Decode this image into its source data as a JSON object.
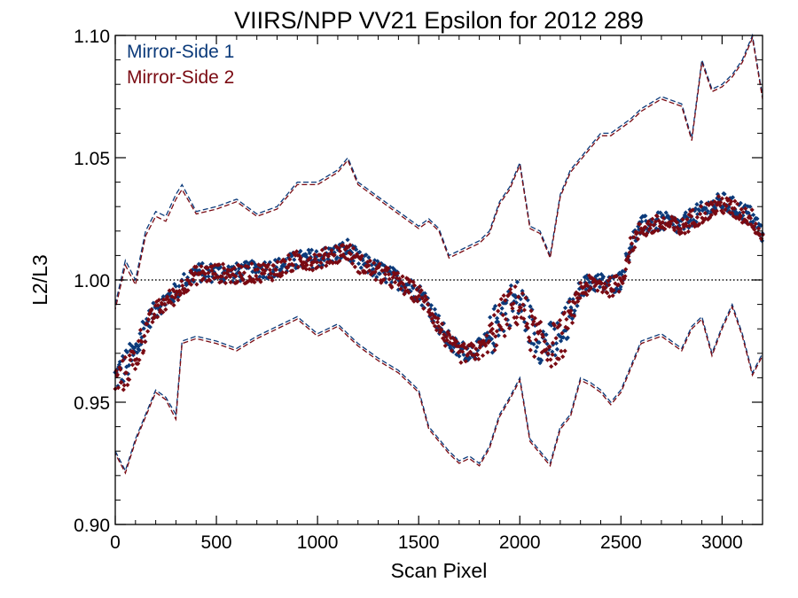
{
  "chart_data": {
    "type": "scatter",
    "title": "VIIRS/NPP VV21 Epsilon for 2012 289",
    "xlabel": "Scan Pixel",
    "ylabel": "L2/L3",
    "xlim": [
      0,
      3200
    ],
    "ylim": [
      0.9,
      1.1
    ],
    "x_ticks": [
      0,
      500,
      1000,
      1500,
      2000,
      2500,
      3000
    ],
    "x_tick_labels": [
      "0",
      "500",
      "1000",
      "1500",
      "2000",
      "2500",
      "3000"
    ],
    "y_ticks": [
      0.9,
      0.95,
      1.0,
      1.05,
      1.1
    ],
    "y_tick_labels": [
      "0.90",
      "0.95",
      "1.00",
      "1.05",
      "1.10"
    ],
    "reference_line": {
      "y": 1.0,
      "style": "dotted",
      "color": "#000000"
    },
    "legend": {
      "placement": "top-left"
    },
    "grid": false,
    "mean_x": [
      0,
      50,
      100,
      150,
      200,
      250,
      300,
      350,
      400,
      500,
      600,
      700,
      800,
      900,
      1000,
      1100,
      1150,
      1200,
      1300,
      1400,
      1500,
      1550,
      1600,
      1650,
      1700,
      1750,
      1800,
      1850,
      1900,
      1950,
      2000,
      2050,
      2100,
      2150,
      2200,
      2250,
      2300,
      2350,
      2400,
      2450,
      2500,
      2550,
      2600,
      2700,
      2800,
      2850,
      2900,
      2950,
      3000,
      3050,
      3100,
      3150,
      3200
    ],
    "upper_x": [
      0,
      50,
      100,
      150,
      200,
      250,
      300,
      330,
      400,
      500,
      600,
      700,
      800,
      900,
      1000,
      1100,
      1150,
      1200,
      1300,
      1400,
      1500,
      1550,
      1600,
      1650,
      1700,
      1750,
      1800,
      1850,
      1900,
      1950,
      2000,
      2050,
      2100,
      2150,
      2200,
      2250,
      2300,
      2350,
      2400,
      2450,
      2500,
      2550,
      2600,
      2700,
      2800,
      2850,
      2900,
      2950,
      3000,
      3050,
      3100,
      3150,
      3200
    ],
    "lower_x": [
      0,
      50,
      100,
      150,
      200,
      250,
      300,
      330,
      400,
      500,
      600,
      700,
      800,
      900,
      1000,
      1100,
      1150,
      1200,
      1300,
      1400,
      1500,
      1550,
      1600,
      1650,
      1700,
      1750,
      1800,
      1850,
      1900,
      1950,
      2000,
      2050,
      2100,
      2150,
      2200,
      2250,
      2300,
      2350,
      2400,
      2450,
      2500,
      2550,
      2600,
      2700,
      2800,
      2850,
      2900,
      2950,
      3000,
      3050,
      3100,
      3150,
      3200
    ],
    "series": [
      {
        "name": "Mirror-Side 1",
        "color": "#0b3a7a",
        "mean_y": [
          0.96,
          0.965,
          0.97,
          0.982,
          0.988,
          0.992,
          0.995,
          1.0,
          1.003,
          1.003,
          1.003,
          1.004,
          1.005,
          1.008,
          1.009,
          1.011,
          1.013,
          1.008,
          1.004,
          1.0,
          0.995,
          0.99,
          0.982,
          0.975,
          0.971,
          0.971,
          0.972,
          0.976,
          0.985,
          0.99,
          0.992,
          0.982,
          0.975,
          0.974,
          0.976,
          0.985,
          0.997,
          0.999,
          0.999,
          0.998,
          1.0,
          1.015,
          1.022,
          1.024,
          1.022,
          1.026,
          1.028,
          1.03,
          1.032,
          1.03,
          1.028,
          1.026,
          1.018
        ],
        "upper_y": [
          0.99,
          1.008,
          1.0,
          1.02,
          1.028,
          1.026,
          1.035,
          1.039,
          1.028,
          1.03,
          1.033,
          1.027,
          1.03,
          1.04,
          1.04,
          1.045,
          1.05,
          1.04,
          1.034,
          1.028,
          1.022,
          1.025,
          1.021,
          1.01,
          1.012,
          1.014,
          1.016,
          1.02,
          1.032,
          1.038,
          1.048,
          1.022,
          1.02,
          1.01,
          1.035,
          1.045,
          1.05,
          1.055,
          1.06,
          1.06,
          1.063,
          1.066,
          1.07,
          1.075,
          1.072,
          1.058,
          1.09,
          1.078,
          1.08,
          1.084,
          1.09,
          1.1,
          1.075
        ],
        "lower_y": [
          0.93,
          0.922,
          0.935,
          0.945,
          0.955,
          0.952,
          0.945,
          0.975,
          0.977,
          0.975,
          0.972,
          0.977,
          0.981,
          0.985,
          0.978,
          0.982,
          0.978,
          0.974,
          0.968,
          0.963,
          0.955,
          0.94,
          0.935,
          0.93,
          0.926,
          0.928,
          0.925,
          0.932,
          0.945,
          0.952,
          0.96,
          0.935,
          0.93,
          0.925,
          0.94,
          0.945,
          0.96,
          0.958,
          0.955,
          0.95,
          0.955,
          0.965,
          0.975,
          0.978,
          0.972,
          0.981,
          0.985,
          0.97,
          0.981,
          0.99,
          0.978,
          0.962,
          0.97
        ]
      },
      {
        "name": "Mirror-Side 2",
        "color": "#7a0a12",
        "mean_y": [
          0.958,
          0.962,
          0.968,
          0.98,
          0.987,
          0.991,
          0.994,
          0.999,
          1.002,
          1.003,
          1.002,
          1.003,
          1.004,
          1.008,
          1.008,
          1.011,
          1.012,
          1.007,
          1.003,
          0.999,
          0.994,
          0.989,
          0.981,
          0.974,
          0.97,
          0.97,
          0.971,
          0.975,
          0.983,
          0.988,
          0.99,
          0.98,
          0.974,
          0.973,
          0.975,
          0.984,
          0.996,
          0.998,
          0.998,
          0.997,
          0.999,
          1.014,
          1.021,
          1.023,
          1.021,
          1.025,
          1.027,
          1.029,
          1.031,
          1.029,
          1.027,
          1.025,
          1.017
        ],
        "upper_y": [
          0.988,
          1.006,
          0.998,
          1.018,
          1.026,
          1.024,
          1.033,
          1.037,
          1.027,
          1.029,
          1.032,
          1.026,
          1.029,
          1.039,
          1.039,
          1.044,
          1.049,
          1.039,
          1.033,
          1.027,
          1.021,
          1.024,
          1.02,
          1.009,
          1.011,
          1.013,
          1.015,
          1.019,
          1.031,
          1.037,
          1.047,
          1.021,
          1.019,
          1.009,
          1.034,
          1.044,
          1.049,
          1.054,
          1.059,
          1.059,
          1.062,
          1.065,
          1.069,
          1.074,
          1.071,
          1.057,
          1.089,
          1.077,
          1.079,
          1.083,
          1.089,
          1.099,
          1.074
        ],
        "lower_y": [
          0.929,
          0.921,
          0.934,
          0.944,
          0.954,
          0.951,
          0.943,
          0.974,
          0.976,
          0.974,
          0.971,
          0.976,
          0.98,
          0.984,
          0.977,
          0.981,
          0.977,
          0.973,
          0.967,
          0.962,
          0.954,
          0.939,
          0.934,
          0.929,
          0.925,
          0.927,
          0.924,
          0.931,
          0.944,
          0.951,
          0.959,
          0.934,
          0.929,
          0.924,
          0.939,
          0.944,
          0.959,
          0.957,
          0.954,
          0.949,
          0.954,
          0.964,
          0.974,
          0.977,
          0.971,
          0.98,
          0.984,
          0.969,
          0.98,
          0.989,
          0.977,
          0.961,
          0.969
        ]
      }
    ]
  }
}
